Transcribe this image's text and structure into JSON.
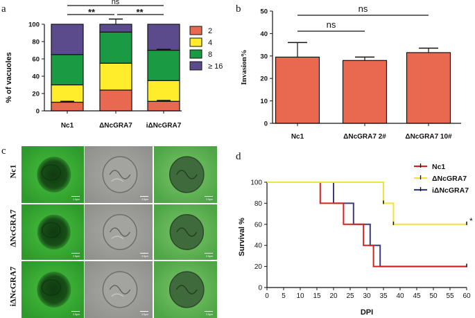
{
  "panels": {
    "a": "a",
    "b": "b",
    "c": "c",
    "d": "d"
  },
  "colors": {
    "bar_2": "#e8694f",
    "bar_4": "#ffec2a",
    "bar_8": "#1a9a42",
    "bar_16": "#5b4a8c",
    "invasion_bar": "#e8694f",
    "nc1_line": "#d62020",
    "dgra7_line": "#f2e23a",
    "idgra7_line": "#3c3a78",
    "micro_green": "#3fb23a",
    "micro_gray": "#9a9a98"
  },
  "chart_data": [
    {
      "panel": "a",
      "type": "bar",
      "stacked": true,
      "categories": [
        "Nc1",
        "ΔNcGRA7",
        "iΔNcGRA7"
      ],
      "series": [
        {
          "name": "2",
          "values": [
            10,
            24,
            11
          ],
          "error": [
            1,
            0,
            1
          ]
        },
        {
          "name": "4",
          "values": [
            20,
            31,
            24
          ]
        },
        {
          "name": "8",
          "values": [
            35,
            36,
            35
          ],
          "error": [
            0,
            0,
            1
          ]
        },
        {
          "name": "≥ 16",
          "values": [
            35,
            9,
            30
          ],
          "error": [
            0,
            6,
            0
          ]
        }
      ],
      "ylabel": "% of vacuoles",
      "xlabel": "",
      "ylim": [
        0,
        100
      ],
      "yticks": [
        0,
        20,
        40,
        60,
        80,
        100
      ],
      "legend_position": "right",
      "annotations": [
        {
          "from": "Nc1",
          "to": "iΔNcGRA7",
          "label": "ns"
        },
        {
          "from": "Nc1",
          "to": "ΔNcGRA7",
          "label": "**"
        },
        {
          "from": "ΔNcGRA7",
          "to": "iΔNcGRA7",
          "label": "**"
        }
      ]
    },
    {
      "panel": "b",
      "type": "bar",
      "categories": [
        "Nc1",
        "ΔNcGRA7 2#",
        "ΔNcGRA7 10#"
      ],
      "values": [
        29.5,
        28,
        31.5
      ],
      "errors": [
        6.5,
        1.5,
        2
      ],
      "ylabel": "Invasion%",
      "xlabel": "",
      "ylim": [
        0,
        50
      ],
      "yticks": [
        0,
        10,
        20,
        30,
        40,
        50
      ],
      "annotations": [
        {
          "from": "Nc1",
          "to": "ΔNcGRA7 2#",
          "label": "ns"
        },
        {
          "from": "Nc1",
          "to": "ΔNcGRA7 10#",
          "label": "ns"
        }
      ]
    },
    {
      "panel": "d",
      "type": "line",
      "step": true,
      "series": [
        {
          "name": "Nc1",
          "x": [
            0,
            16,
            16,
            23,
            23,
            29,
            29,
            32,
            32,
            60
          ],
          "y": [
            100,
            100,
            80,
            80,
            60,
            60,
            40,
            40,
            20,
            20
          ]
        },
        {
          "name": "ΔNcGRA7",
          "x": [
            0,
            35,
            35,
            38,
            38,
            60
          ],
          "y": [
            100,
            100,
            80,
            80,
            60,
            60
          ]
        },
        {
          "name": "iΔNcGRA7",
          "x": [
            0,
            20,
            20,
            26,
            26,
            31,
            31,
            34,
            34,
            60
          ],
          "y": [
            100,
            100,
            80,
            80,
            60,
            60,
            40,
            40,
            20,
            20
          ]
        }
      ],
      "censor_marks": [
        {
          "series": "ΔNcGRA7",
          "x": 35,
          "y": 80
        },
        {
          "series": "ΔNcGRA7",
          "x": 38,
          "y": 60
        },
        {
          "series": "ΔNcGRA7",
          "x": 60,
          "y": 60
        },
        {
          "series": "iΔNcGRA7",
          "x": 60,
          "y": 20
        }
      ],
      "xlabel": "DPI",
      "ylabel": "Survival %",
      "xlim": [
        0,
        60
      ],
      "ylim": [
        0,
        100
      ],
      "xticks": [
        0,
        5,
        10,
        15,
        20,
        25,
        30,
        35,
        40,
        45,
        50,
        55,
        60
      ],
      "yticks": [
        0,
        20,
        40,
        60,
        80,
        100
      ],
      "legend_position": "top-right",
      "annotation": "*"
    }
  ],
  "micrographs": {
    "rows": [
      "Nc1",
      "ΔNcGRA7",
      "iΔNcGRA7"
    ],
    "columns": [
      "fluorescence",
      "brightfield",
      "merge"
    ],
    "scale_label": "2.5μm"
  }
}
